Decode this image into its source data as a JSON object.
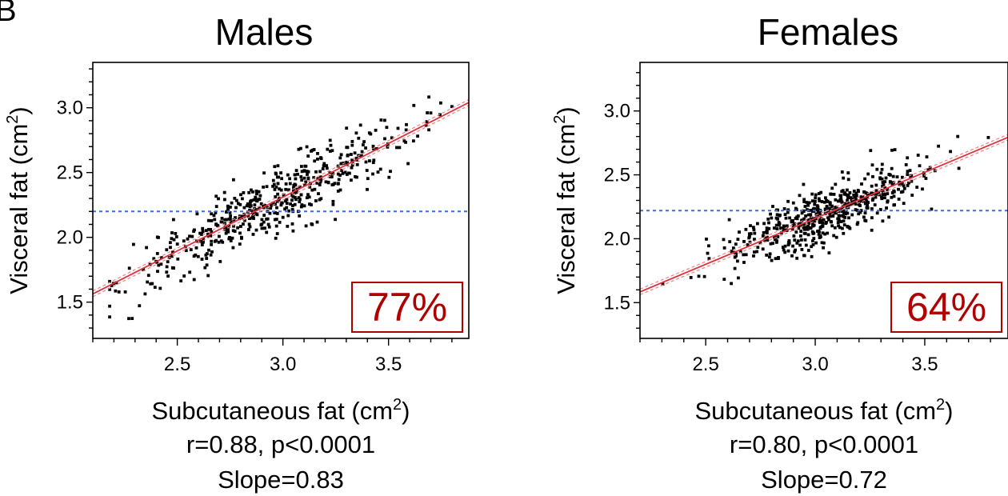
{
  "panel_letter": "B",
  "colors": {
    "points": "#000000",
    "fit_line": "#e0303a",
    "ci_band": "#f08088",
    "reference_line": "#3b6fe0",
    "percent_label": "#b00000"
  },
  "chart_data": [
    {
      "type": "scatter",
      "title": "Males",
      "xlabel": "Subcutaneous fat (cm",
      "xlabel_sup": "2",
      "xlabel_end": ")",
      "ylabel": "Visceral fat (cm",
      "ylabel_sup": "2",
      "ylabel_end": ")",
      "xlim": [
        2.1,
        3.88
      ],
      "ylim": [
        1.22,
        3.35
      ],
      "x_ticks": [
        2.5,
        3.0,
        3.5
      ],
      "x_tick_labels": [
        "2.5",
        "3.0",
        "3.5"
      ],
      "y_ticks": [
        1.5,
        2.0,
        2.5,
        3.0
      ],
      "y_tick_labels": [
        "1.5",
        "2.0",
        "2.5",
        "3.0"
      ],
      "reference_y": 2.2,
      "fit": {
        "intercept": -0.18,
        "slope": 0.83,
        "ci_halfwidth": 0.022
      },
      "percent_label": "77%",
      "stat_line": "r=0.88, p<0.0001",
      "slope_line": "Slope=0.83",
      "point_cloud": {
        "n": 520,
        "x_mean": 2.95,
        "x_sd": 0.34,
        "x_min": 2.18,
        "x_max": 3.8,
        "resid_sd": 0.12,
        "y_min": 1.24,
        "y_max": 3.24
      }
    },
    {
      "type": "scatter",
      "title": "Females",
      "xlabel": "Subcutaneous fat (cm",
      "xlabel_sup": "2",
      "xlabel_end": ")",
      "ylabel": "Visceral fat (cm",
      "ylabel_sup": "2",
      "ylabel_end": ")",
      "xlim": [
        2.2,
        3.88
      ],
      "ylim": [
        1.22,
        3.38
      ],
      "x_ticks": [
        2.5,
        3.0,
        3.5
      ],
      "x_tick_labels": [
        "2.5",
        "3.0",
        "3.5"
      ],
      "y_ticks": [
        1.5,
        2.0,
        2.5,
        3.0
      ],
      "y_tick_labels": [
        "1.5",
        "2.0",
        "2.5",
        "3.0"
      ],
      "reference_y": 2.22,
      "fit": {
        "intercept": 0.0,
        "slope": 0.72,
        "ci_halfwidth": 0.022
      },
      "percent_label": "64%",
      "stat_line": "r=0.80, p<0.0001",
      "slope_line": "Slope=0.72",
      "point_cloud": {
        "n": 560,
        "x_mean": 3.05,
        "x_sd": 0.22,
        "x_min": 2.28,
        "x_max": 3.85,
        "resid_sd": 0.11,
        "y_min": 1.64,
        "y_max": 2.98
      }
    }
  ]
}
